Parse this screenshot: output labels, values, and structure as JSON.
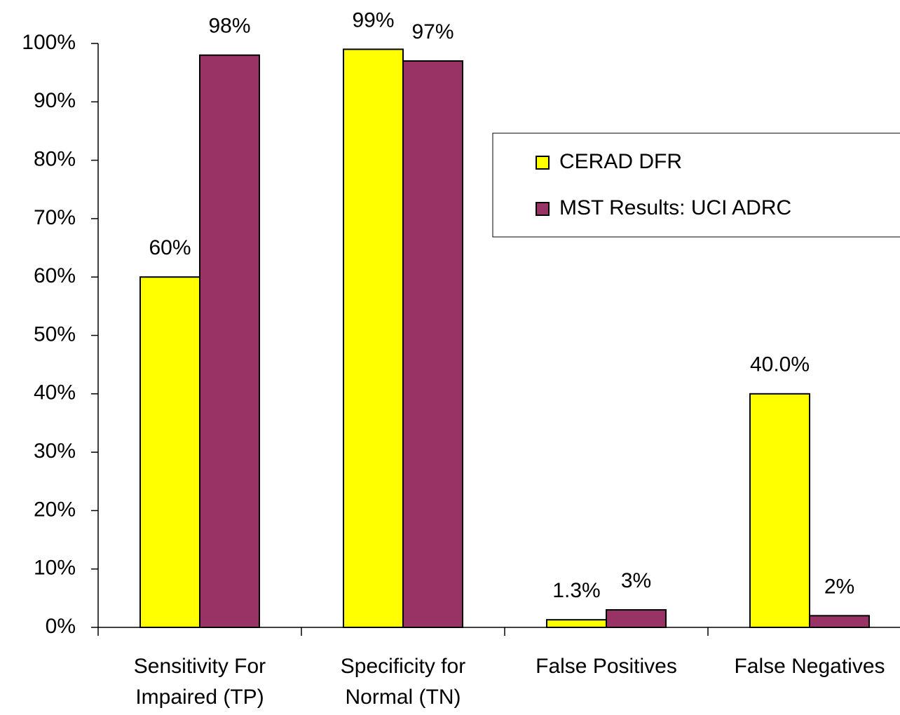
{
  "chart_data": {
    "type": "bar",
    "categories": [
      [
        "Sensitivity For",
        "Impaired (TP)"
      ],
      [
        "Specificity for",
        "Normal (TN)"
      ],
      [
        "False Positives"
      ],
      [
        "False Negatives"
      ]
    ],
    "series": [
      {
        "name": "CERAD DFR",
        "color": "#ffff00",
        "values": [
          60,
          99,
          1.3,
          40
        ],
        "value_labels": [
          "60%",
          "99%",
          "1.3%",
          "40.0%"
        ]
      },
      {
        "name": "MST Results: UCI ADRC",
        "color": "#993366",
        "values": [
          98,
          97,
          3,
          2
        ],
        "value_labels": [
          "98%",
          "97%",
          "3%",
          "2%"
        ]
      }
    ],
    "ylim": [
      0,
      100
    ],
    "yticks": [
      {
        "value": 0,
        "label": "0%"
      },
      {
        "value": 10,
        "label": "10%"
      },
      {
        "value": 20,
        "label": "20%"
      },
      {
        "value": 30,
        "label": "30%"
      },
      {
        "value": 40,
        "label": "40%"
      },
      {
        "value": 50,
        "label": "50%"
      },
      {
        "value": 60,
        "label": "60%"
      },
      {
        "value": 70,
        "label": "70%"
      },
      {
        "value": 80,
        "label": "80%"
      },
      {
        "value": 90,
        "label": "90%"
      },
      {
        "value": 100,
        "label": "100%"
      }
    ],
    "grid": false,
    "legend": "upper right"
  }
}
